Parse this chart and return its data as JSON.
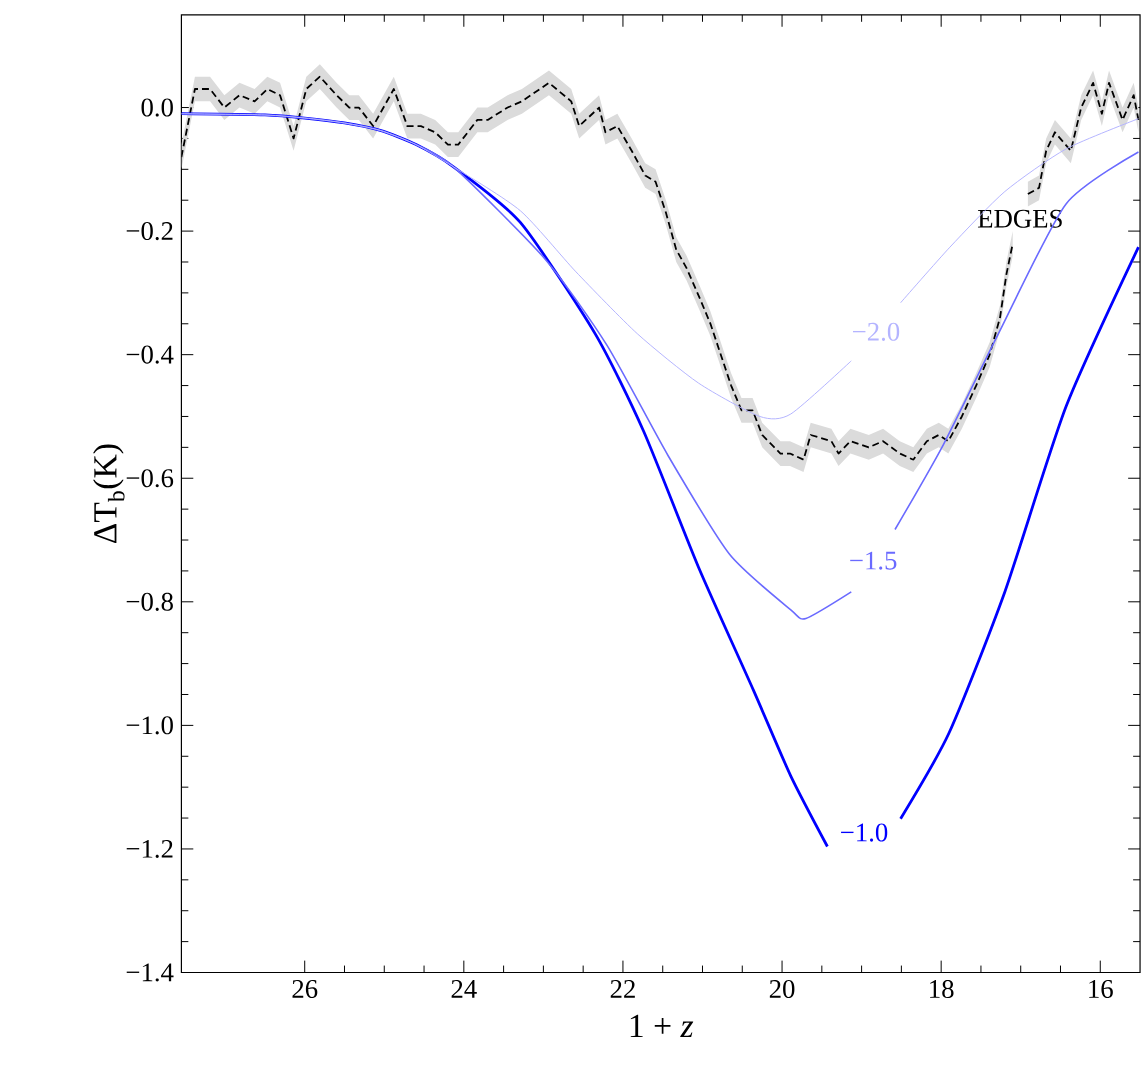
{
  "chart_data": {
    "type": "line",
    "xlabel": "1 + *z*",
    "ylabel": "ΔT$_{b}$(K)",
    "xlim": [
      27.55,
      15.5
    ],
    "ylim": [
      -1.4,
      0.15
    ],
    "xticks": [
      26,
      24,
      22,
      20,
      18,
      16
    ],
    "yticks": [
      {
        "value": 0,
        "label": "0.0"
      },
      {
        "value": -0.2,
        "label": "−0.2"
      },
      {
        "value": -0.4,
        "label": "−0.4"
      },
      {
        "value": -0.6,
        "label": "−0.6"
      },
      {
        "value": -0.8,
        "label": "−0.8"
      },
      {
        "value": -1.0,
        "label": "−1.0"
      },
      {
        "value": -1.2,
        "label": "−1.2"
      },
      {
        "value": -1.4,
        "label": "−1.4"
      }
    ],
    "series": [
      {
        "name": "EDGES",
        "color": "#000000",
        "line_style": "dashed",
        "x": [
          27.55,
          27.38,
          27.19,
          27.01,
          26.82,
          26.63,
          26.47,
          26.31,
          26.14,
          25.98,
          25.81,
          25.6,
          25.44,
          25.32,
          25.14,
          24.88,
          24.71,
          24.54,
          24.36,
          24.2,
          24.07,
          23.83,
          23.7,
          23.45,
          23.27,
          22.93,
          22.65,
          22.55,
          22.3,
          22.22,
          22.07,
          21.89,
          21.72,
          21.59,
          21.46,
          21.33,
          21.2,
          21.03,
          20.9,
          20.77,
          20.64,
          20.51,
          20.37,
          20.25,
          20.02,
          19.9,
          19.73,
          19.64,
          19.38,
          19.29,
          19.14,
          18.91,
          18.73,
          18.52,
          18.35,
          18.18,
          18.03,
          17.91,
          17.74,
          17.56,
          17.39,
          17.26,
          17.18,
          17.1,
          17.0,
          16.91,
          16.77,
          16.68,
          16.57,
          16.37,
          16.24,
          16.09,
          15.98,
          15.89,
          15.72,
          15.58,
          15.52
        ],
        "values": [
          -0.08,
          0.03,
          0.03,
          0.0,
          0.02,
          0.01,
          0.03,
          0.02,
          -0.05,
          0.03,
          0.05,
          0.02,
          0.0,
          0.0,
          -0.03,
          0.03,
          -0.03,
          -0.03,
          -0.04,
          -0.06,
          -0.06,
          -0.02,
          -0.02,
          0.0,
          0.01,
          0.04,
          0.01,
          -0.03,
          0.0,
          -0.04,
          -0.03,
          -0.07,
          -0.11,
          -0.12,
          -0.17,
          -0.23,
          -0.26,
          -0.31,
          -0.35,
          -0.4,
          -0.45,
          -0.49,
          -0.49,
          -0.53,
          -0.56,
          -0.56,
          -0.57,
          -0.53,
          -0.54,
          -0.56,
          -0.54,
          -0.55,
          -0.54,
          -0.56,
          -0.57,
          -0.54,
          -0.53,
          -0.54,
          -0.5,
          -0.45,
          -0.4,
          -0.34,
          -0.27,
          -0.22,
          null,
          -0.14,
          -0.13,
          -0.07,
          -0.04,
          -0.07,
          0.0,
          0.04,
          -0.01,
          0.04,
          -0.02,
          0.02,
          -0.02
        ],
        "lower": [
          -0.1,
          0.01,
          0.01,
          -0.02,
          0.0,
          -0.01,
          0.01,
          0.0,
          -0.07,
          0.01,
          0.03,
          0.0,
          -0.02,
          -0.02,
          -0.05,
          0.01,
          -0.05,
          -0.05,
          -0.06,
          -0.08,
          -0.08,
          -0.04,
          -0.04,
          -0.02,
          -0.01,
          0.02,
          -0.01,
          -0.05,
          -0.02,
          -0.06,
          -0.05,
          -0.09,
          -0.13,
          -0.14,
          -0.19,
          -0.25,
          -0.28,
          -0.33,
          -0.37,
          -0.42,
          -0.47,
          -0.51,
          -0.51,
          -0.55,
          -0.58,
          -0.58,
          -0.59,
          -0.55,
          -0.56,
          -0.58,
          -0.56,
          -0.57,
          -0.56,
          -0.58,
          -0.59,
          -0.56,
          -0.55,
          -0.56,
          -0.52,
          -0.47,
          -0.42,
          -0.36,
          -0.29,
          -0.24,
          null,
          -0.16,
          -0.15,
          -0.09,
          -0.06,
          -0.09,
          -0.02,
          0.02,
          -0.03,
          0.02,
          -0.04,
          0.0,
          -0.04
        ],
        "upper": [
          -0.06,
          0.05,
          0.05,
          0.02,
          0.04,
          0.03,
          0.05,
          0.04,
          -0.03,
          0.05,
          0.07,
          0.04,
          0.02,
          0.02,
          -0.01,
          0.05,
          -0.01,
          -0.01,
          -0.02,
          -0.04,
          -0.04,
          0.0,
          0.0,
          0.02,
          0.03,
          0.06,
          0.03,
          -0.01,
          0.02,
          -0.02,
          -0.01,
          -0.05,
          -0.09,
          -0.1,
          -0.15,
          -0.21,
          -0.24,
          -0.29,
          -0.33,
          -0.38,
          -0.43,
          -0.47,
          -0.47,
          -0.51,
          -0.54,
          -0.54,
          -0.55,
          -0.51,
          -0.52,
          -0.54,
          -0.52,
          -0.53,
          -0.52,
          -0.54,
          -0.55,
          -0.52,
          -0.51,
          -0.52,
          -0.48,
          -0.43,
          -0.38,
          -0.32,
          -0.25,
          -0.2,
          null,
          -0.12,
          -0.11,
          -0.05,
          -0.02,
          -0.05,
          0.02,
          0.06,
          0.01,
          0.06,
          0.0,
          0.04,
          0.0
        ]
      },
      {
        "name": "−1.0",
        "color": "#0000ff",
        "x": [
          27.55,
          26.5,
          26.0,
          25.5,
          25.05,
          24.6,
          24.13,
          23.29,
          22.35,
          21.74,
          21.05,
          20.36,
          19.89,
          19.43,
          18.97,
          18.51,
          17.9,
          17.2,
          16.43,
          15.52
        ],
        "values": [
          -0.01,
          -0.012,
          -0.017,
          -0.025,
          -0.037,
          -0.06,
          -0.096,
          -0.186,
          -0.366,
          -0.524,
          -0.744,
          -0.943,
          -1.082,
          -1.196,
          null,
          -1.151,
          -1.012,
          -0.784,
          -0.484,
          -0.226
        ]
      },
      {
        "name": "−1.5",
        "color": "#6a6aff",
        "x": [
          27.55,
          26.5,
          26.0,
          25.5,
          25.05,
          24.6,
          24.13,
          22.98,
          22.2,
          21.43,
          20.66,
          19.89,
          19.7,
          19.13,
          18.85,
          18.58,
          17.97,
          17.28,
          16.43,
          15.52
        ],
        "values": [
          -0.01,
          -0.012,
          -0.017,
          -0.025,
          -0.037,
          -0.06,
          -0.096,
          -0.245,
          -0.385,
          -0.564,
          -0.723,
          -0.813,
          -0.827,
          -0.784,
          null,
          -0.683,
          -0.545,
          -0.366,
          -0.156,
          -0.072
        ]
      },
      {
        "name": "−2.0",
        "color": "#b4b4ff",
        "x": [
          27.55,
          26.5,
          26.0,
          25.5,
          25.05,
          24.6,
          24.13,
          23.29,
          22.59,
          21.82,
          21.05,
          20.28,
          19.89,
          19.13,
          18.82,
          18.51,
          17.89,
          17.2,
          16.43,
          15.52
        ],
        "values": [
          -0.01,
          -0.012,
          -0.017,
          -0.025,
          -0.037,
          -0.06,
          -0.096,
          -0.167,
          -0.266,
          -0.366,
          -0.446,
          -0.5,
          -0.496,
          -0.41,
          null,
          -0.316,
          -0.226,
          -0.136,
          -0.067,
          -0.018
        ]
      }
    ]
  }
}
